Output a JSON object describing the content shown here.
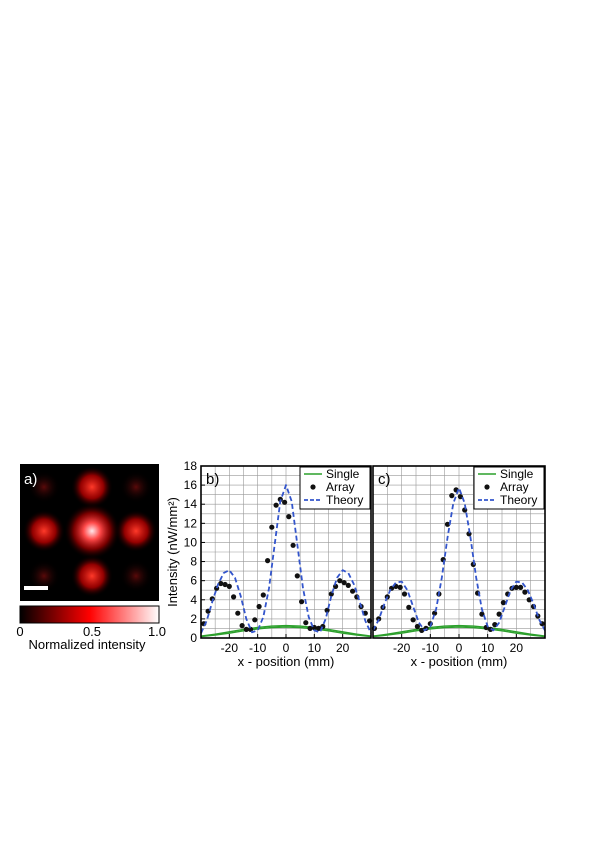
{
  "panel_a": {
    "label": "a)",
    "colorbar": {
      "label": "Normalized intensity",
      "ticks": [
        "0",
        "0.5",
        "1.0"
      ],
      "colors": [
        "#000000",
        "#ff0000",
        "#ffffff"
      ]
    }
  },
  "colors": {
    "single": "#2ca02c",
    "array_points": "#111111",
    "theory": "#3355cc",
    "grid": "#999999"
  },
  "chart_data": [
    {
      "type": "scatter",
      "panel_label": "b)",
      "xlabel": "x - position (mm)",
      "ylabel": "Intensity (nW/mm²)",
      "xlim": [
        -30,
        30
      ],
      "ylim": [
        0,
        18
      ],
      "xticks": [
        "-20",
        "-10",
        "0",
        "10",
        "20"
      ],
      "yticks": [
        "0",
        "2",
        "4",
        "6",
        "8",
        "10",
        "12",
        "14",
        "16",
        "18"
      ],
      "grid": true,
      "legend_position": "top-right",
      "legend": [
        "Single",
        "Array",
        "Theory"
      ],
      "series": [
        {
          "name": "Single",
          "style": "line",
          "curves": [
            {
              "x": [
                -30,
                -25,
                -20,
                -15,
                -10,
                -5,
                0,
                5,
                10,
                15,
                20,
                25,
                30
              ],
              "y": [
                0.15,
                0.3,
                0.5,
                0.75,
                0.95,
                1.1,
                1.15,
                1.1,
                0.95,
                0.75,
                0.5,
                0.3,
                0.15
              ]
            },
            {
              "x": [
                -30,
                -25,
                -20,
                -15,
                -10,
                -5,
                0,
                5,
                10,
                15,
                20,
                25,
                30
              ],
              "y": [
                0.2,
                0.4,
                0.65,
                0.9,
                1.1,
                1.25,
                1.3,
                1.25,
                1.1,
                0.9,
                0.65,
                0.4,
                0.2
              ]
            }
          ]
        },
        {
          "name": "Array",
          "style": "points",
          "x": [
            -29,
            -27.5,
            -26,
            -24.5,
            -23,
            -21.5,
            -20,
            -18.5,
            -17,
            -15.5,
            -14,
            -12.5,
            -11,
            -9.5,
            -8,
            -6.5,
            -5,
            -3.5,
            -2,
            -0.5,
            1,
            2.5,
            4,
            5.5,
            7,
            8.5,
            10,
            11.5,
            13,
            14.5,
            16,
            17.5,
            19,
            20.5,
            22,
            23.5,
            25,
            26.5,
            28,
            29.5
          ],
          "y": [
            1.5,
            2.8,
            4.1,
            5.2,
            5.7,
            5.6,
            5.4,
            4.3,
            2.6,
            1.3,
            0.9,
            0.9,
            1.9,
            3.3,
            4.5,
            8.1,
            11.6,
            13.9,
            14.5,
            14.2,
            12.7,
            9.7,
            6.5,
            3.8,
            1.6,
            1.0,
            1.1,
            1.0,
            1.2,
            2.9,
            4.6,
            5.4,
            6.0,
            5.8,
            5.5,
            4.9,
            4.3,
            3.3,
            2.6,
            1.8
          ]
        },
        {
          "name": "Theory",
          "style": "dashed",
          "x": [
            -30,
            -28,
            -26,
            -24,
            -22,
            -20,
            -18,
            -16,
            -14,
            -12,
            -10,
            -8,
            -6,
            -4,
            -2,
            0,
            2,
            4,
            6,
            8,
            10,
            12,
            14,
            16,
            18,
            20,
            22,
            24,
            26,
            28,
            30
          ],
          "y": [
            0.5,
            1.8,
            3.8,
            5.6,
            6.8,
            7.1,
            6.3,
            4.4,
            2.0,
            0.6,
            0.8,
            2.2,
            5.2,
            9.8,
            14.3,
            16.0,
            14.3,
            9.8,
            5.2,
            2.2,
            0.8,
            0.6,
            2.0,
            4.4,
            6.3,
            7.1,
            6.8,
            5.6,
            3.8,
            1.8,
            0.5
          ]
        }
      ]
    },
    {
      "type": "scatter",
      "panel_label": "c)",
      "xlabel": "x - position (mm)",
      "ylabel": "",
      "xlim": [
        -30,
        30
      ],
      "ylim": [
        0,
        18
      ],
      "xticks": [
        "-20",
        "-10",
        "0",
        "10",
        "20"
      ],
      "yticks": [],
      "grid": true,
      "legend_position": "top-right",
      "legend": [
        "Single",
        "Array",
        "Theory"
      ],
      "series": [
        {
          "name": "Single",
          "style": "line",
          "curves": [
            {
              "x": [
                -30,
                -25,
                -20,
                -15,
                -10,
                -5,
                0,
                5,
                10,
                15,
                20,
                25,
                30
              ],
              "y": [
                0.15,
                0.3,
                0.5,
                0.75,
                0.95,
                1.1,
                1.15,
                1.1,
                0.95,
                0.75,
                0.5,
                0.3,
                0.15
              ]
            },
            {
              "x": [
                -30,
                -25,
                -20,
                -15,
                -10,
                -5,
                0,
                5,
                10,
                15,
                20,
                25,
                30
              ],
              "y": [
                0.2,
                0.4,
                0.65,
                0.9,
                1.1,
                1.25,
                1.3,
                1.25,
                1.1,
                0.9,
                0.65,
                0.4,
                0.2
              ]
            }
          ]
        },
        {
          "name": "Array",
          "style": "points",
          "x": [
            -29.5,
            -28,
            -26.5,
            -25,
            -23.5,
            -22,
            -20.5,
            -19,
            -17.5,
            -16,
            -14.5,
            -13,
            -11.5,
            -10,
            -8.5,
            -7,
            -5.5,
            -4,
            -2.5,
            -1,
            0.5,
            2,
            3.5,
            5,
            6.5,
            8,
            9.5,
            11,
            12.5,
            14,
            15.5,
            17,
            18.5,
            20,
            21.5,
            23,
            24.5,
            26,
            27.5,
            29
          ],
          "y": [
            1.0,
            2.0,
            3.2,
            4.3,
            5.2,
            5.4,
            5.3,
            4.6,
            3.2,
            1.9,
            1.2,
            0.8,
            1.0,
            1.5,
            2.6,
            4.6,
            8.2,
            11.9,
            14.9,
            15.5,
            14.8,
            13.4,
            10.9,
            7.7,
            4.7,
            2.5,
            1.1,
            0.9,
            1.4,
            2.5,
            3.7,
            4.6,
            5.2,
            5.3,
            5.3,
            4.8,
            4.0,
            3.3,
            2.3,
            1.5
          ]
        },
        {
          "name": "Theory",
          "style": "dashed",
          "x": [
            -30,
            -28,
            -26,
            -24,
            -22,
            -20,
            -18,
            -16,
            -14,
            -12,
            -10,
            -8,
            -6,
            -4,
            -2,
            0,
            2,
            4,
            6,
            8,
            10,
            12,
            14,
            16,
            18,
            20,
            22,
            24,
            26,
            28,
            30
          ],
          "y": [
            0.8,
            1.9,
            3.6,
            5.0,
            5.8,
            5.9,
            5.0,
            3.3,
            1.6,
            0.8,
            1.2,
            3.0,
            6.3,
            10.5,
            14.1,
            15.7,
            14.1,
            10.5,
            6.3,
            3.0,
            1.2,
            0.8,
            1.6,
            3.3,
            5.0,
            5.9,
            5.8,
            5.0,
            3.6,
            1.9,
            0.8
          ]
        }
      ]
    }
  ]
}
